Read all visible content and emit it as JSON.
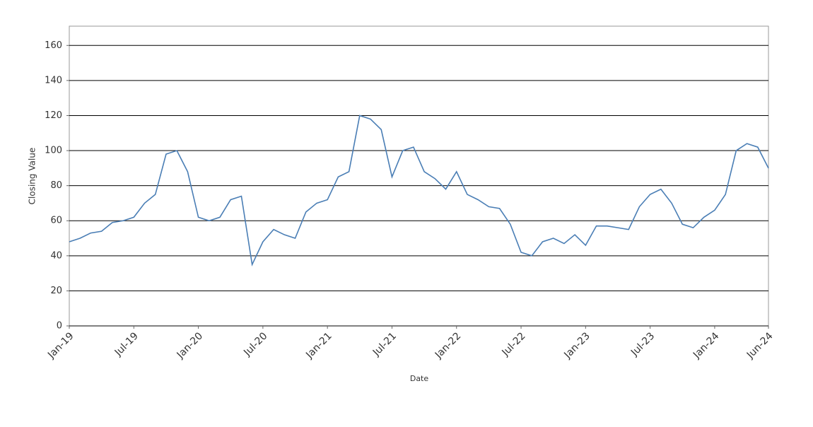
{
  "chart_data": {
    "type": "line",
    "x_label": "Date",
    "y_label": "Closing Value",
    "x": [
      "2019-01",
      "2019-02",
      "2019-03",
      "2019-04",
      "2019-05",
      "2019-06",
      "2019-07",
      "2019-08",
      "2019-09",
      "2019-10",
      "2019-11",
      "2019-12",
      "2020-01",
      "2020-02",
      "2020-03",
      "2020-04",
      "2020-05",
      "2020-06",
      "2020-07",
      "2020-08",
      "2020-09",
      "2020-10",
      "2020-11",
      "2020-12",
      "2021-01",
      "2021-02",
      "2021-03",
      "2021-04",
      "2021-05",
      "2021-06",
      "2021-07",
      "2021-08",
      "2021-09",
      "2021-10",
      "2021-11",
      "2021-12",
      "2022-01",
      "2022-02",
      "2022-03",
      "2022-04",
      "2022-05",
      "2022-06",
      "2022-07",
      "2022-08",
      "2022-09",
      "2022-10",
      "2022-11",
      "2022-12",
      "2023-01",
      "2023-02",
      "2023-03",
      "2023-04",
      "2023-05",
      "2023-06",
      "2023-07",
      "2023-08",
      "2023-09",
      "2023-10",
      "2023-11",
      "2023-12",
      "2024-01",
      "2024-02",
      "2024-03",
      "2024-04",
      "2024-05",
      "2024-06"
    ],
    "series": [
      {
        "name": "Closing Value",
        "color": "#4a7eb5",
        "values": [
          48,
          50,
          53,
          54,
          59,
          60,
          62,
          70,
          75,
          98,
          100,
          88,
          62,
          60,
          62,
          72,
          74,
          35,
          48,
          55,
          52,
          50,
          65,
          70,
          72,
          85,
          88,
          120,
          118,
          112,
          85,
          100,
          102,
          88,
          84,
          78,
          88,
          75,
          72,
          68,
          67,
          58,
          42,
          40,
          48,
          50,
          47,
          52,
          46,
          57,
          57,
          56,
          55,
          68,
          75,
          78,
          70,
          58,
          56,
          62,
          66,
          75,
          100,
          104,
          102,
          90
        ]
      }
    ],
    "xlim": [
      "2019-01",
      "2024-06"
    ],
    "xticks": [
      {
        "value": "2019-01",
        "label": "Jan-19"
      },
      {
        "value": "2019-07",
        "label": "Jul-19"
      },
      {
        "value": "2020-01",
        "label": "Jan-20"
      },
      {
        "value": "2020-07",
        "label": "Jul-20"
      },
      {
        "value": "2021-01",
        "label": "Jan-21"
      },
      {
        "value": "2021-07",
        "label": "Jul-21"
      },
      {
        "value": "2022-01",
        "label": "Jan-22"
      },
      {
        "value": "2022-07",
        "label": "Jul-22"
      },
      {
        "value": "2023-01",
        "label": "Jan-23"
      },
      {
        "value": "2023-07",
        "label": "Jul-23"
      },
      {
        "value": "2024-01",
        "label": "Jan-24"
      },
      {
        "value": "2024-06",
        "label": "Jun-24"
      }
    ],
    "ylim": [
      0,
      171
    ],
    "yticks": [
      0,
      20,
      40,
      60,
      80,
      100,
      120,
      140,
      160
    ],
    "grid": true
  }
}
